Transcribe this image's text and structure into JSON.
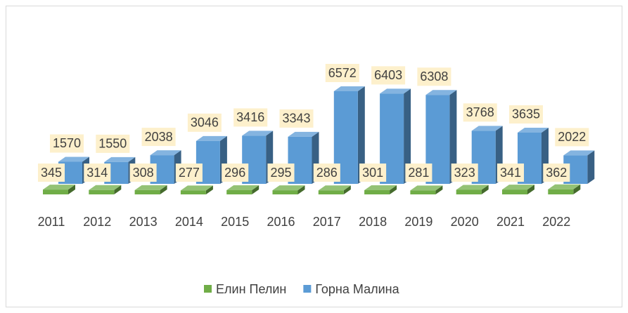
{
  "chart_data": {
    "type": "bar3d",
    "categories": [
      "2011",
      "2012",
      "2013",
      "2014",
      "2015",
      "2016",
      "2017",
      "2018",
      "2019",
      "2020",
      "2021",
      "2022"
    ],
    "series": [
      {
        "name": "Елин Пелин",
        "color": "#70ad47",
        "values": [
          345,
          314,
          308,
          277,
          296,
          295,
          286,
          301,
          281,
          323,
          341,
          362
        ]
      },
      {
        "name": "Горна Малина",
        "color": "#5b9bd5",
        "values": [
          1570,
          1550,
          2038,
          3046,
          3416,
          3343,
          6572,
          6403,
          6308,
          3768,
          3635,
          2022
        ]
      }
    ],
    "legend": "bottom"
  }
}
